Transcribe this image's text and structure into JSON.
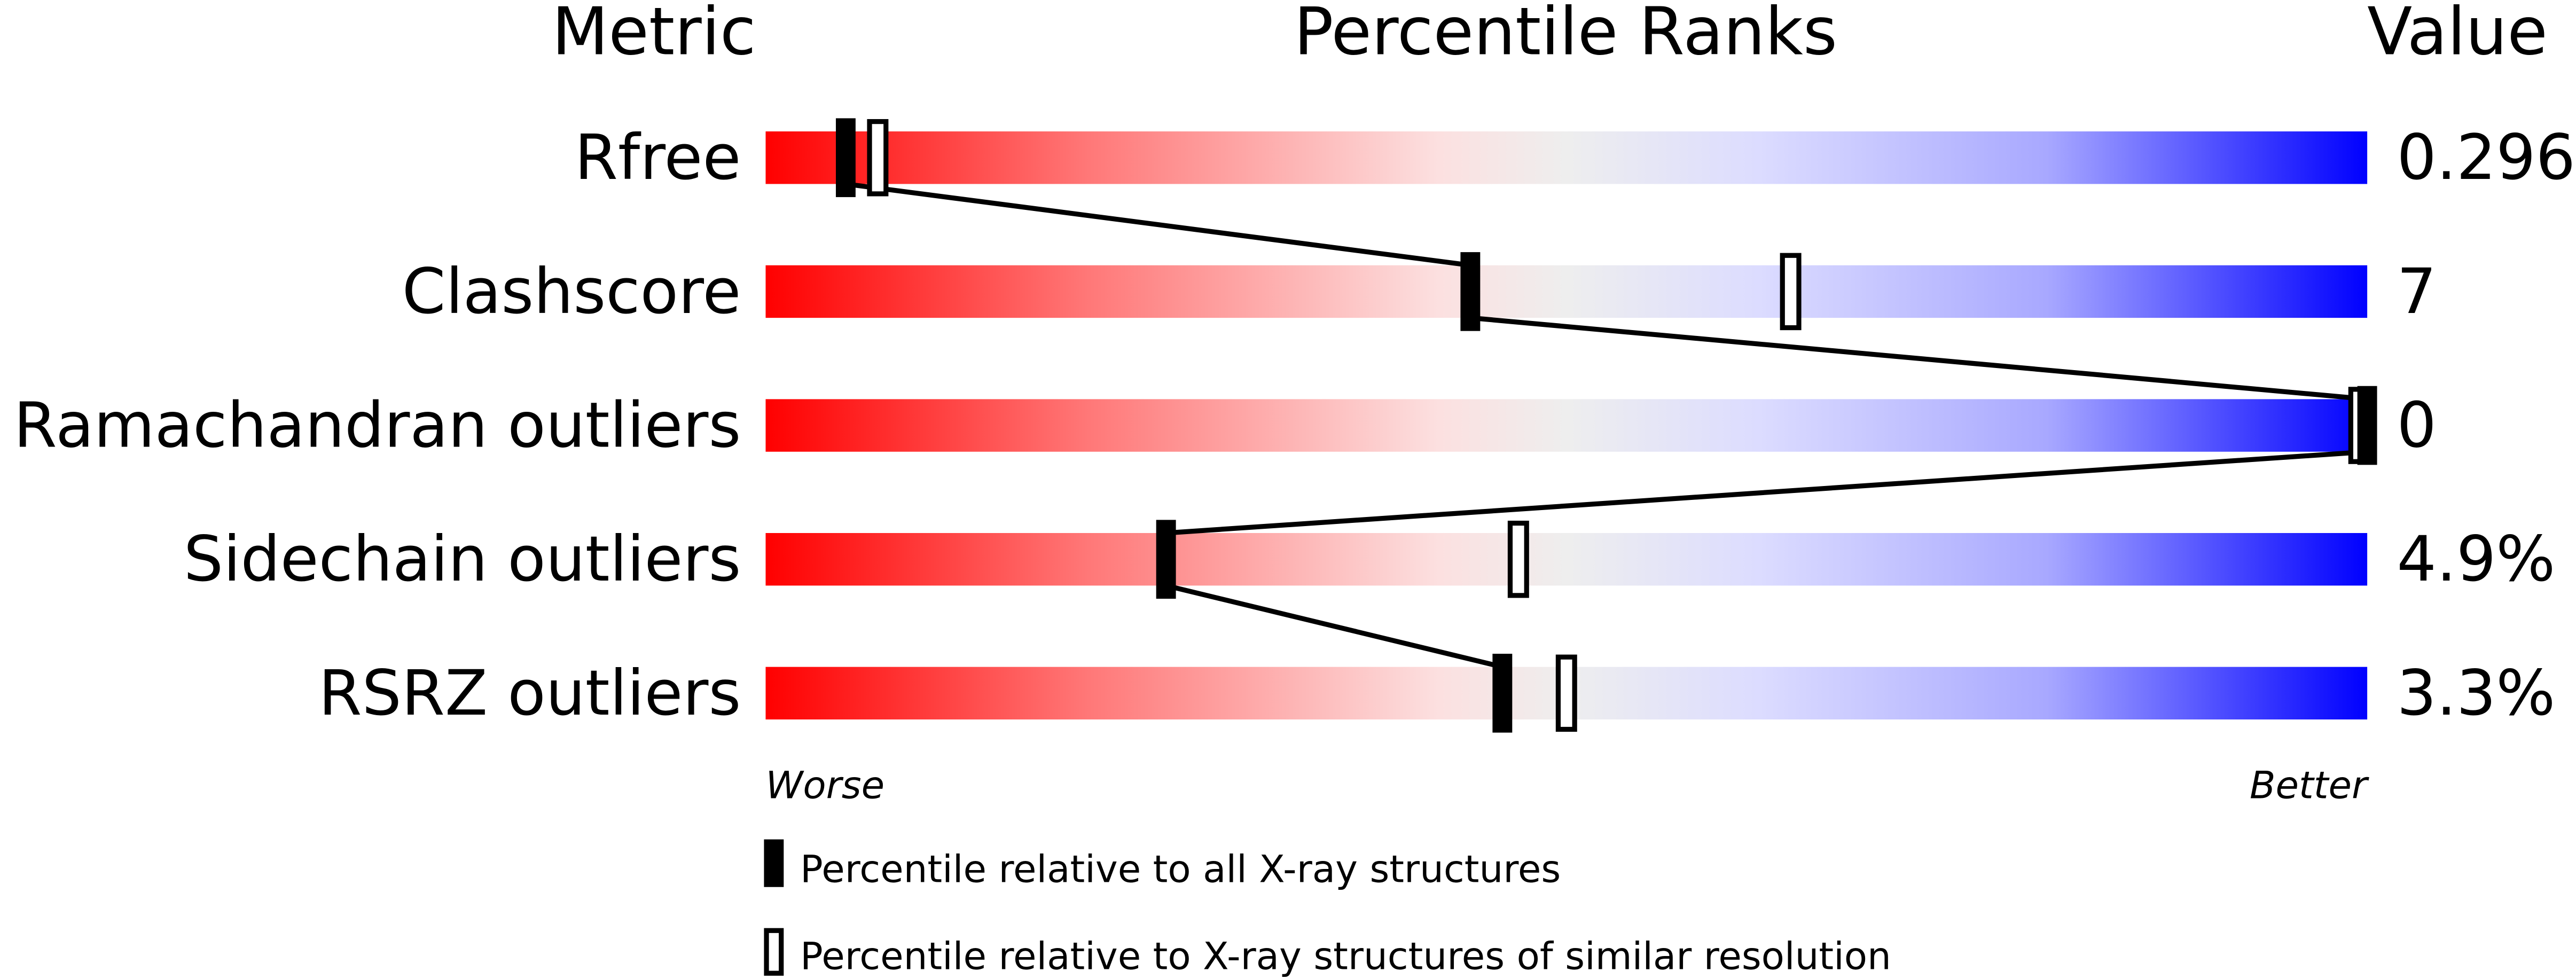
{
  "chart_data": {
    "type": "percentile-slider",
    "headers": {
      "metric": "Metric",
      "ranks": "Percentile Ranks",
      "value": "Value"
    },
    "xlim": [
      0,
      100
    ],
    "axis_labels": {
      "worse": "Worse",
      "better": "Better"
    },
    "metrics": [
      {
        "name": "Rfree",
        "value": "0.296",
        "percentile_all": 5,
        "percentile_similar": 7
      },
      {
        "name": "Clashscore",
        "value": "7",
        "percentile_all": 44,
        "percentile_similar": 64
      },
      {
        "name": "Ramachandran outliers",
        "value": "0",
        "percentile_all": 100,
        "percentile_similar": 100
      },
      {
        "name": "Sidechain outliers",
        "value": "4.9%",
        "percentile_all": 25,
        "percentile_similar": 47
      },
      {
        "name": "RSRZ outliers",
        "value": "3.3%",
        "percentile_all": 46,
        "percentile_similar": 50
      }
    ],
    "legend": {
      "all": "Percentile relative to all X-ray structures",
      "similar": "Percentile relative to X-ray structures of similar resolution"
    },
    "colors": {
      "worse": "#ff0000",
      "middle": "#eeeeee",
      "better": "#0000ff"
    }
  }
}
